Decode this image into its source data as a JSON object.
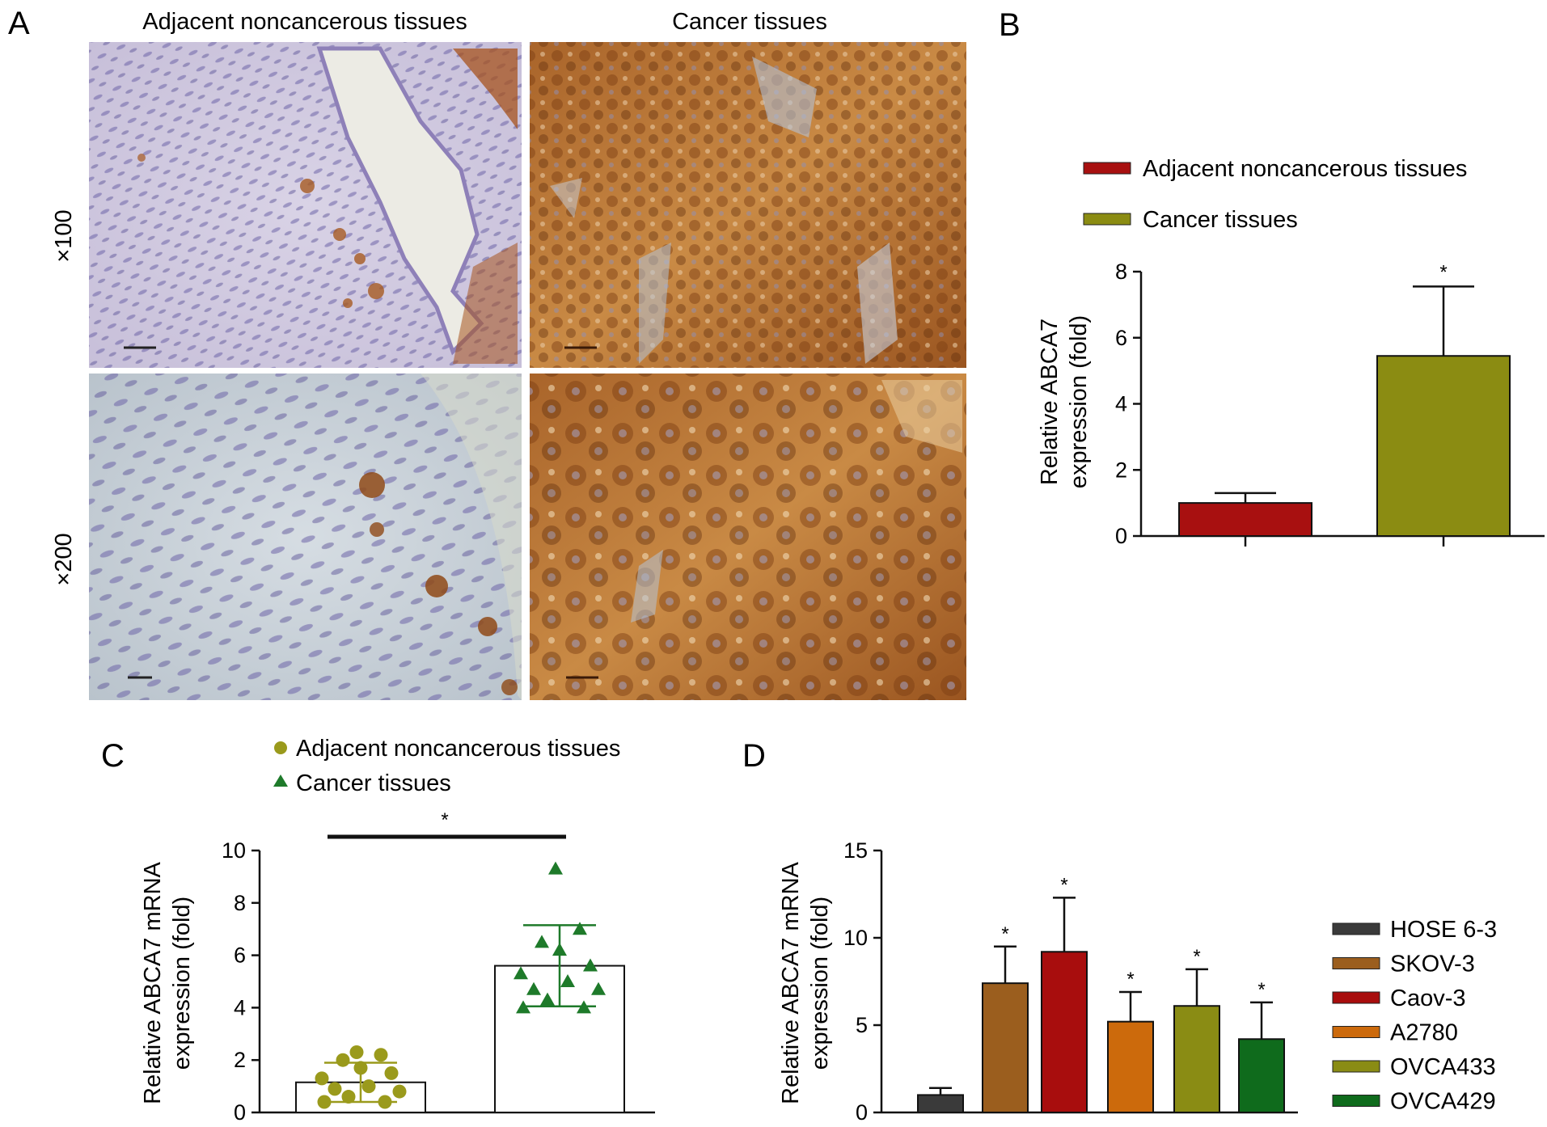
{
  "panels": {
    "a": {
      "letter": "A",
      "col1": "Adjacent noncancerous tissues",
      "col2": "Cancer tissues",
      "row1": "×100",
      "row2": "×200"
    },
    "b": {
      "letter": "B"
    },
    "c": {
      "letter": "C"
    },
    "d": {
      "letter": "D"
    }
  },
  "colors": {
    "adjacent_red": "#a81010",
    "cancer_olive": "#8b8c12",
    "c_adjacent": "#9a9a1c",
    "c_cancer": "#1e7a2a",
    "stain_brown": "#b5651d",
    "hematoxylin": "#7b6fb0"
  },
  "chart_data": [
    {
      "panel": "B",
      "type": "bar",
      "categories": [
        "Adjacent noncancerous tissues",
        "Cancer tissues"
      ],
      "values": [
        1.0,
        5.45
      ],
      "errors": [
        0.3,
        2.1
      ],
      "significance": [
        "",
        "*"
      ],
      "legend": [
        "Adjacent noncancerous tissues",
        "Cancer tissues"
      ],
      "legend_position": "top",
      "xlabel": "",
      "ylabel_lines": [
        "Relative ABCA7",
        "expression (fold)"
      ],
      "ylim": [
        0,
        8
      ],
      "yticks": [
        0,
        2,
        4,
        6,
        8
      ],
      "grid": false
    },
    {
      "panel": "C",
      "type": "scatter",
      "categories": [
        "Adjacent noncancerous tissues",
        "Cancer tissues"
      ],
      "series": [
        {
          "name": "Adjacent noncancerous tissues",
          "marker": "circle",
          "mean": 1.15,
          "sd": 0.75,
          "points": [
            0.4,
            0.4,
            0.6,
            0.8,
            0.9,
            1.0,
            1.3,
            1.5,
            1.7,
            2.0,
            2.2,
            2.3
          ]
        },
        {
          "name": "Cancer tissues",
          "marker": "triangle",
          "mean": 5.6,
          "sd": 1.55,
          "points": [
            4.0,
            4.0,
            4.3,
            4.7,
            4.7,
            5.0,
            5.3,
            5.6,
            6.2,
            6.5,
            7.0,
            9.3
          ]
        }
      ],
      "significance": "*",
      "legend_position": "top",
      "ylabel_lines": [
        "Relative ABCA7 mRNA",
        "expression (fold)"
      ],
      "ylim": [
        0,
        10
      ],
      "yticks": [
        0,
        2,
        4,
        6,
        8,
        10
      ],
      "grid": false
    },
    {
      "panel": "D",
      "type": "bar",
      "categories": [
        "HOSE 6-3",
        "SKOV-3",
        "Caov-3",
        "A2780",
        "OVCA433",
        "OVCA429"
      ],
      "values": [
        1.0,
        7.4,
        9.2,
        5.2,
        6.1,
        4.2
      ],
      "errors": [
        0.4,
        2.1,
        3.1,
        1.7,
        2.1,
        2.1
      ],
      "significance": [
        "",
        "*",
        "*",
        "*",
        "*",
        "*"
      ],
      "bar_colors": [
        "#3a3a3a",
        "#9b5e1e",
        "#a80d0d",
        "#cc6a0c",
        "#8a8c14",
        "#0f6b1c"
      ],
      "legend": [
        "HOSE 6-3",
        "SKOV-3",
        "Caov-3",
        "A2780",
        "OVCA433",
        "OVCA429"
      ],
      "legend_position": "right",
      "xlabel": "",
      "ylabel_lines": [
        "Relative ABCA7 mRNA",
        "expression (fold)"
      ],
      "ylim": [
        0,
        15
      ],
      "yticks": [
        0,
        5,
        10,
        15
      ],
      "grid": false
    }
  ]
}
